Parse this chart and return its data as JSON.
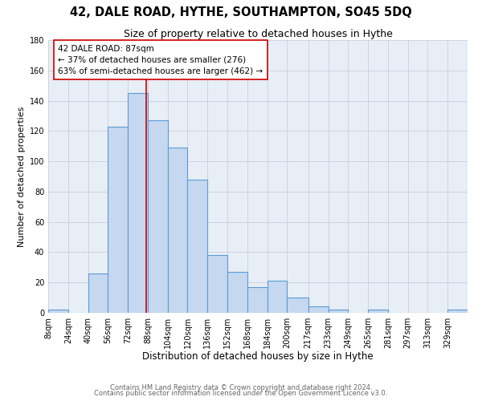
{
  "title": "42, DALE ROAD, HYTHE, SOUTHAMPTON, SO45 5DQ",
  "subtitle": "Size of property relative to detached houses in Hythe",
  "xlabel": "Distribution of detached houses by size in Hythe",
  "ylabel": "Number of detached properties",
  "bar_labels": [
    "8sqm",
    "24sqm",
    "40sqm",
    "56sqm",
    "72sqm",
    "88sqm",
    "104sqm",
    "120sqm",
    "136sqm",
    "152sqm",
    "168sqm",
    "184sqm",
    "200sqm",
    "217sqm",
    "233sqm",
    "249sqm",
    "265sqm",
    "281sqm",
    "297sqm",
    "313sqm",
    "329sqm"
  ],
  "bar_values": [
    2,
    0,
    26,
    123,
    145,
    127,
    109,
    88,
    38,
    27,
    17,
    21,
    10,
    4,
    2,
    0,
    2,
    0,
    0,
    0,
    2
  ],
  "bar_edges": [
    8,
    24,
    40,
    56,
    72,
    88,
    104,
    120,
    136,
    152,
    168,
    184,
    200,
    217,
    233,
    249,
    265,
    281,
    297,
    313,
    329,
    345
  ],
  "bar_color": "#c5d8ef",
  "bar_edge_color": "#5b9bd5",
  "property_line_x": 87,
  "property_line_color": "#cc0000",
  "annotation_line1": "42 DALE ROAD: 87sqm",
  "annotation_line2": "← 37% of detached houses are smaller (276)",
  "annotation_line3": "63% of semi-detached houses are larger (462) →",
  "annotation_box_edge_color": "#cc0000",
  "annotation_box_face_color": "#ffffff",
  "ylim": [
    0,
    180
  ],
  "yticks": [
    0,
    20,
    40,
    60,
    80,
    100,
    120,
    140,
    160,
    180
  ],
  "xlim_left": 8,
  "xlim_right": 345,
  "background_color": "#ffffff",
  "plot_bg_color": "#e8eef5",
  "grid_color": "#c8d0dc",
  "footer_line1": "Contains HM Land Registry data © Crown copyright and database right 2024.",
  "footer_line2": "Contains public sector information licensed under the Open Government Licence v3.0.",
  "title_fontsize": 10.5,
  "subtitle_fontsize": 9,
  "xlabel_fontsize": 8.5,
  "ylabel_fontsize": 8,
  "tick_fontsize": 7,
  "footer_fontsize": 6,
  "annotation_fontsize": 7.5
}
